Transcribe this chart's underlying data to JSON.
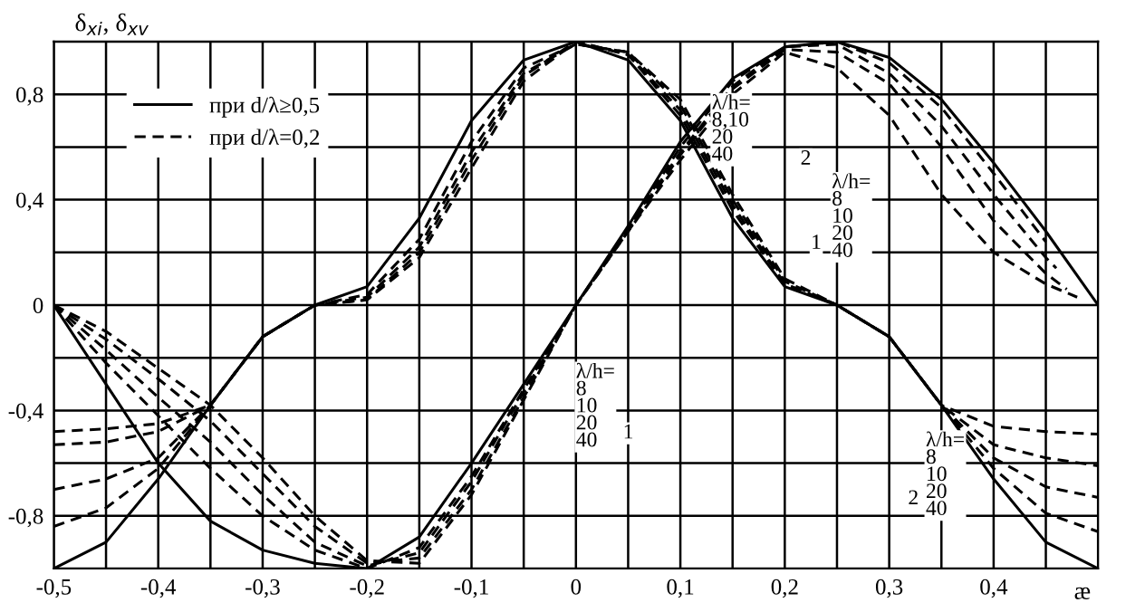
{
  "chart_data": {
    "type": "line",
    "xlabel": "æ",
    "ylabel": "δ$_{xi}$, δ$_{xv}$",
    "x": [
      -0.5,
      -0.45,
      -0.4,
      -0.35,
      -0.3,
      -0.25,
      -0.2,
      -0.15,
      -0.1,
      -0.05,
      0,
      0.05,
      0.1,
      0.15,
      0.2,
      0.25,
      0.3,
      0.35,
      0.4,
      0.45,
      0.5
    ],
    "series": [
      {
        "name": "при d/λ≥0,5",
        "color": "#000000",
        "line_style": "solid",
        "values": [
          0,
          -0.3,
          -0.6,
          -0.82,
          -0.93,
          -0.98,
          -1,
          -0.88,
          -0.6,
          -0.3,
          0,
          0.3,
          0.62,
          0.86,
          0.98,
          1,
          0.94,
          0.78,
          0.54,
          0.28,
          0
        ]
      },
      {
        "color": "#000000",
        "line_style": "solid",
        "values": [
          -1,
          -0.9,
          -0.66,
          -0.38,
          -0.12,
          0,
          0.07,
          0.33,
          0.7,
          0.93,
          1,
          0.93,
          0.7,
          0.33,
          0.07,
          0,
          -0.12,
          -0.38,
          -0.66,
          -0.9,
          -1
        ]
      },
      {
        "name": "при d/λ=0,2",
        "color": "#000000",
        "line_style": "dashed",
        "x": [
          -0.5,
          -0.45,
          -0.4,
          -0.35,
          -0.3,
          -0.25,
          -0.2,
          -0.15,
          -0.1,
          -0.05,
          0,
          0.05,
          0.1,
          0.15,
          0.2,
          0.25,
          0.3,
          0.35,
          0.4,
          0.45,
          0.48
        ],
        "values": [
          0,
          -0.1,
          -0.24,
          -0.38,
          -0.58,
          -0.8,
          -0.97,
          -0.98,
          -0.72,
          -0.36,
          0,
          0.28,
          0.55,
          0.8,
          0.96,
          0.9,
          0.72,
          0.42,
          0.2,
          0.08,
          0.03
        ]
      },
      {
        "color": "#000000",
        "line_style": "dashed",
        "x": [
          -0.5,
          -0.45,
          -0.4,
          -0.35,
          -0.3,
          -0.25,
          -0.2,
          -0.15,
          -0.1,
          -0.05,
          0,
          0.05,
          0.1,
          0.15,
          0.2,
          0.25,
          0.3,
          0.35,
          0.4,
          0.45,
          0.47
        ],
        "values": [
          0,
          -0.13,
          -0.28,
          -0.44,
          -0.64,
          -0.84,
          -0.98,
          -0.96,
          -0.7,
          -0.35,
          0,
          0.28,
          0.57,
          0.82,
          0.97,
          0.96,
          0.84,
          0.6,
          0.32,
          0.12,
          0.06
        ]
      },
      {
        "color": "#000000",
        "line_style": "dashed",
        "x": [
          -0.5,
          -0.45,
          -0.4,
          -0.35,
          -0.3,
          -0.25,
          -0.2,
          -0.15,
          -0.1,
          -0.05,
          0,
          0.05,
          0.1,
          0.15,
          0.2,
          0.25,
          0.3,
          0.35,
          0.4,
          0.45,
          0.46
        ],
        "values": [
          0,
          -0.17,
          -0.35,
          -0.52,
          -0.72,
          -0.9,
          -0.99,
          -0.94,
          -0.67,
          -0.33,
          0,
          0.29,
          0.58,
          0.83,
          0.98,
          0.99,
          0.88,
          0.68,
          0.42,
          0.18,
          0.14
        ]
      },
      {
        "color": "#000000",
        "line_style": "dashed",
        "x": [
          -0.5,
          -0.45,
          -0.4,
          -0.35,
          -0.3,
          -0.25,
          -0.2,
          -0.15,
          -0.1,
          -0.05,
          0,
          0.05,
          0.1,
          0.15,
          0.2,
          0.25,
          0.3,
          0.35,
          0.4,
          0.45
        ],
        "values": [
          0,
          -0.22,
          -0.42,
          -0.62,
          -0.8,
          -0.93,
          -1,
          -0.92,
          -0.65,
          -0.32,
          0,
          0.29,
          0.6,
          0.85,
          0.98,
          1,
          0.92,
          0.75,
          0.5,
          0.24
        ]
      },
      {
        "color": "#000000",
        "line_style": "dashed",
        "values": [
          -0.48,
          -0.47,
          -0.45,
          -0.38,
          -0.12,
          0,
          0.04,
          0.25,
          0.62,
          0.9,
          0.99,
          0.96,
          0.78,
          0.42,
          0.1,
          0,
          -0.12,
          -0.38,
          -0.46,
          -0.48,
          -0.49
        ]
      },
      {
        "color": "#000000",
        "line_style": "dashed",
        "values": [
          -0.53,
          -0.52,
          -0.48,
          -0.38,
          -0.12,
          0,
          0.03,
          0.22,
          0.58,
          0.88,
          0.99,
          0.96,
          0.76,
          0.4,
          0.09,
          0,
          -0.12,
          -0.38,
          -0.53,
          -0.58,
          -0.61
        ]
      },
      {
        "color": "#000000",
        "line_style": "dashed",
        "values": [
          -0.7,
          -0.66,
          -0.58,
          -0.38,
          -0.12,
          0,
          0.02,
          0.2,
          0.55,
          0.87,
          1,
          0.95,
          0.74,
          0.38,
          0.08,
          0,
          -0.12,
          -0.38,
          -0.58,
          -0.69,
          -0.73
        ]
      },
      {
        "color": "#000000",
        "line_style": "dashed",
        "values": [
          -0.84,
          -0.77,
          -0.62,
          -0.38,
          -0.12,
          0,
          0.02,
          0.18,
          0.52,
          0.85,
          1,
          0.95,
          0.72,
          0.36,
          0.08,
          0,
          -0.12,
          -0.38,
          -0.62,
          -0.79,
          -0.86
        ]
      }
    ],
    "xlim": [
      -0.5,
      0.5
    ],
    "ylim": [
      -1,
      1
    ],
    "xticks": [
      {
        "value": -0.5,
        "label": "-0,5"
      },
      {
        "value": -0.45,
        "label": null
      },
      {
        "value": -0.4,
        "label": "-0,4"
      },
      {
        "value": -0.35,
        "label": null
      },
      {
        "value": -0.3,
        "label": "-0,3"
      },
      {
        "value": -0.25,
        "label": null
      },
      {
        "value": -0.2,
        "label": "-0,2"
      },
      {
        "value": -0.15,
        "label": null
      },
      {
        "value": -0.1,
        "label": "-0,1"
      },
      {
        "value": -0.05,
        "label": null
      },
      0,
      {
        "value": 0.05,
        "label": null
      },
      {
        "value": 0.1,
        "label": "0,1"
      },
      {
        "value": 0.15,
        "label": null
      },
      {
        "value": 0.2,
        "label": "0,2"
      },
      {
        "value": 0.25,
        "label": null
      },
      {
        "value": 0.3,
        "label": "0,3"
      },
      {
        "value": 0.35,
        "label": null
      },
      {
        "value": 0.4,
        "label": "0,4"
      },
      {
        "value": 0.45,
        "label": null
      },
      {
        "value": 0.5,
        "label": null
      }
    ],
    "yticks": [
      {
        "value": -1,
        "label": null
      },
      {
        "value": -0.8,
        "label": "-0,8"
      },
      {
        "value": -0.6,
        "label": null
      },
      {
        "value": -0.4,
        "label": "-0,4"
      },
      {
        "value": -0.2,
        "label": null
      },
      0,
      {
        "value": 0.2,
        "label": null
      },
      {
        "value": 0.4,
        "label": "0,4"
      },
      {
        "value": 0.6,
        "label": null
      },
      {
        "value": 0.8,
        "label": "0,8"
      },
      {
        "value": 1,
        "label": null
      }
    ],
    "grid": true,
    "legend": "top left",
    "marker": "none",
    "annotations": [
      "λ/h=\n8,10\n20\n40",
      "2",
      "λ/h=\n8\n10\n20\n40",
      "1",
      "λ/h=\n8\n10\n20\n40",
      "1",
      "λ/h=\n8\n10\n20\n40",
      "2"
    ]
  }
}
